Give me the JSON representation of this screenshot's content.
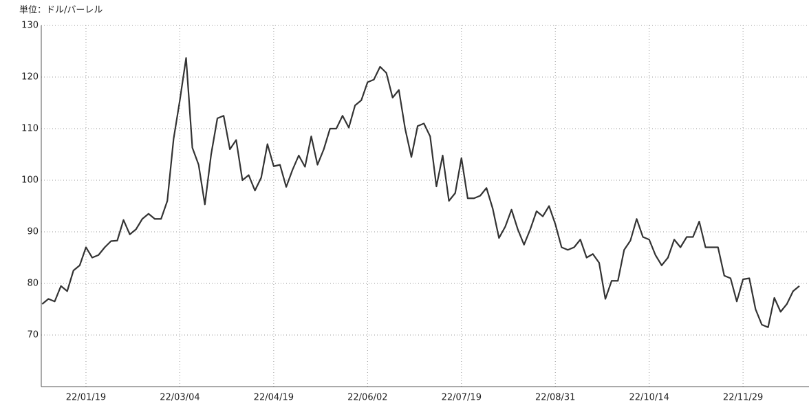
{
  "chart_data": {
    "type": "line",
    "title": "単位：ドル/バーレル",
    "categories": [
      null,
      null,
      null,
      null,
      null,
      null,
      null,
      "22/01/19",
      null,
      null,
      null,
      null,
      null,
      null,
      null,
      null,
      null,
      null,
      null,
      null,
      null,
      null,
      "22/03/04",
      null,
      null,
      null,
      null,
      null,
      null,
      null,
      null,
      null,
      null,
      null,
      null,
      null,
      null,
      "22/04/19",
      null,
      null,
      null,
      null,
      null,
      null,
      null,
      null,
      null,
      null,
      null,
      null,
      null,
      null,
      "22/06/02",
      null,
      null,
      null,
      null,
      null,
      null,
      null,
      null,
      null,
      null,
      null,
      null,
      null,
      null,
      "22/07/19",
      null,
      null,
      null,
      null,
      null,
      null,
      null,
      null,
      null,
      null,
      null,
      null,
      null,
      null,
      "22/08/31",
      null,
      null,
      null,
      null,
      null,
      null,
      null,
      null,
      null,
      null,
      null,
      null,
      null,
      null,
      "22/10/14",
      null,
      null,
      null,
      null,
      null,
      null,
      null,
      null,
      null,
      null,
      null,
      null,
      null,
      null,
      "22/11/29",
      null,
      null,
      null,
      null,
      null,
      null,
      null,
      null,
      null
    ],
    "values": [
      76,
      77,
      76.5,
      79.5,
      78.5,
      82.5,
      83.5,
      87,
      85,
      85.5,
      87,
      88.2,
      88.3,
      92.3,
      89.5,
      90.5,
      92.5,
      93.5,
      92.5,
      92.5,
      96,
      108,
      115.5,
      123.7,
      106.3,
      103,
      95.3,
      105,
      112,
      112.5,
      106,
      107.8,
      100,
      101,
      98,
      100.5,
      107,
      102.7,
      103,
      98.7,
      102,
      104.8,
      102.6,
      108.5,
      103,
      106,
      110,
      110,
      112.5,
      110.2,
      114.5,
      115.5,
      119,
      119.5,
      122,
      120.8,
      116,
      117.5,
      110,
      104.5,
      110.5,
      111,
      108.5,
      98.8,
      104.8,
      96,
      97.5,
      104.3,
      96.5,
      96.5,
      97,
      98.5,
      94.5,
      88.8,
      91,
      94.3,
      90.5,
      87.5,
      90.5,
      94,
      93,
      95,
      91.5,
      87,
      86.5,
      87,
      88.5,
      85,
      85.7,
      84,
      77,
      80.5,
      80.5,
      86.5,
      88.3,
      92.5,
      89,
      88.5,
      85.5,
      83.5,
      85,
      88.5,
      87,
      89,
      89,
      92,
      87,
      87,
      87,
      81.5,
      81,
      76.5,
      80.8,
      81,
      75,
      72,
      71.5,
      77.2,
      74.5,
      76,
      78.5,
      79.5
    ],
    "color": "#333333",
    "ylim": [
      60,
      130
    ],
    "yticks": [
      70,
      80,
      90,
      100,
      110,
      120,
      130
    ],
    "grid": true
  }
}
